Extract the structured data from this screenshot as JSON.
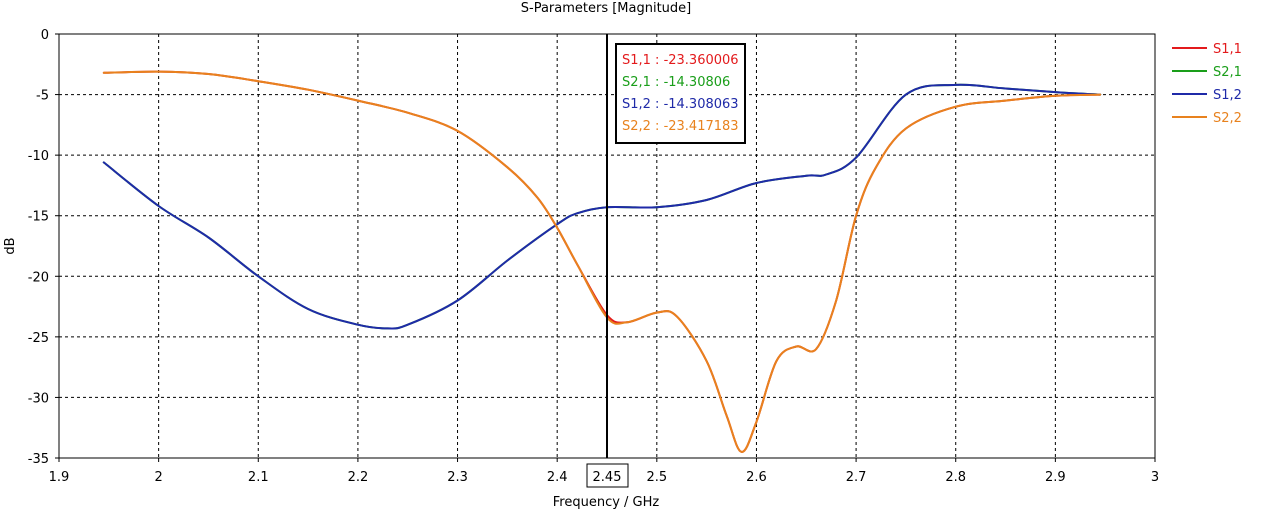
{
  "chart_data": {
    "type": "line",
    "title": "S-Parameters [Magnitude]",
    "xlabel": "Frequency / GHz",
    "ylabel": "dB",
    "xlim": [
      1.9,
      3.0
    ],
    "ylim": [
      -35,
      0
    ],
    "xticks": [
      1.9,
      2.0,
      2.1,
      2.2,
      2.3,
      2.4,
      2.5,
      2.6,
      2.7,
      2.8,
      2.9,
      3.0
    ],
    "xtick_labels": [
      "1.9",
      "2",
      "2.1",
      "2.2",
      "2.3",
      "2.4",
      "2.5",
      "2.6",
      "2.7",
      "2.8",
      "2.9",
      "3"
    ],
    "yticks": [
      0,
      -5,
      -10,
      -15,
      -20,
      -25,
      -30,
      -35
    ],
    "ytick_labels": [
      "0",
      "-5",
      "-10",
      "-15",
      "-20",
      "-25",
      "-30",
      "-35"
    ],
    "grid": true,
    "legend_position": "right",
    "marker": {
      "x": 2.45,
      "label": "2.45",
      "readouts": [
        {
          "text": "S1,1 : -23.360006",
          "color": "#e31a1c"
        },
        {
          "text": "S2,1 : -14.30806",
          "color": "#1a9e1a"
        },
        {
          "text": "S1,2 : -14.308063",
          "color": "#1f2aa8"
        },
        {
          "text": "S2,2 : -23.417183",
          "color": "#e8821e"
        }
      ]
    },
    "series": [
      {
        "name": "S1,1",
        "color": "#e31a1c",
        "x": [
          1.945,
          2.0,
          2.05,
          2.1,
          2.15,
          2.2,
          2.25,
          2.3,
          2.35,
          2.38,
          2.4,
          2.42,
          2.45,
          2.47,
          2.5,
          2.52,
          2.55,
          2.57,
          2.585,
          2.6,
          2.62,
          2.64,
          2.66,
          2.68,
          2.7,
          2.72,
          2.75,
          2.8,
          2.85,
          2.9,
          2.945
        ],
        "y": [
          -3.2,
          -3.1,
          -3.3,
          -3.9,
          -4.6,
          -5.5,
          -6.5,
          -8.0,
          -11.0,
          -13.5,
          -16.0,
          -19.0,
          -23.2,
          -23.8,
          -23.0,
          -23.3,
          -27.0,
          -31.5,
          -34.5,
          -32.0,
          -27.0,
          -25.8,
          -26.0,
          -22.0,
          -15.0,
          -11.0,
          -7.8,
          -6.0,
          -5.5,
          -5.1,
          -5.0
        ]
      },
      {
        "name": "S2,1",
        "color": "#1a9e1a",
        "x": [
          1.945,
          2.0,
          2.05,
          2.1,
          2.15,
          2.2,
          2.23,
          2.25,
          2.3,
          2.35,
          2.4,
          2.42,
          2.45,
          2.5,
          2.55,
          2.6,
          2.65,
          2.67,
          2.7,
          2.75,
          2.8,
          2.85,
          2.9,
          2.945
        ],
        "y": [
          -10.6,
          -14.2,
          -16.8,
          -20.0,
          -22.7,
          -24.0,
          -24.3,
          -24.0,
          -22.0,
          -18.7,
          -15.7,
          -14.8,
          -14.3,
          -14.3,
          -13.7,
          -12.3,
          -11.7,
          -11.6,
          -10.2,
          -5.0,
          -4.2,
          -4.5,
          -4.8,
          -5.0
        ]
      },
      {
        "name": "S1,2",
        "color": "#1f2aa8",
        "x": [
          1.945,
          2.0,
          2.05,
          2.1,
          2.15,
          2.2,
          2.23,
          2.25,
          2.3,
          2.35,
          2.4,
          2.42,
          2.45,
          2.5,
          2.55,
          2.6,
          2.65,
          2.67,
          2.7,
          2.75,
          2.8,
          2.85,
          2.9,
          2.945
        ],
        "y": [
          -10.6,
          -14.2,
          -16.8,
          -20.0,
          -22.7,
          -24.0,
          -24.3,
          -24.0,
          -22.0,
          -18.7,
          -15.7,
          -14.8,
          -14.3,
          -14.3,
          -13.7,
          -12.3,
          -11.7,
          -11.6,
          -10.2,
          -5.0,
          -4.2,
          -4.5,
          -4.8,
          -5.0
        ]
      },
      {
        "name": "S2,2",
        "color": "#e8821e",
        "x": [
          1.945,
          2.0,
          2.05,
          2.1,
          2.15,
          2.2,
          2.25,
          2.3,
          2.35,
          2.38,
          2.4,
          2.42,
          2.45,
          2.47,
          2.5,
          2.52,
          2.55,
          2.57,
          2.585,
          2.6,
          2.62,
          2.64,
          2.66,
          2.68,
          2.7,
          2.72,
          2.75,
          2.8,
          2.85,
          2.9,
          2.945
        ],
        "y": [
          -3.2,
          -3.1,
          -3.3,
          -3.9,
          -4.6,
          -5.5,
          -6.5,
          -8.0,
          -11.0,
          -13.5,
          -16.0,
          -19.0,
          -23.4,
          -23.8,
          -23.0,
          -23.3,
          -27.0,
          -31.5,
          -34.5,
          -32.0,
          -27.0,
          -25.8,
          -26.0,
          -22.0,
          -15.0,
          -11.0,
          -7.8,
          -6.0,
          -5.5,
          -5.1,
          -5.0
        ]
      }
    ]
  }
}
